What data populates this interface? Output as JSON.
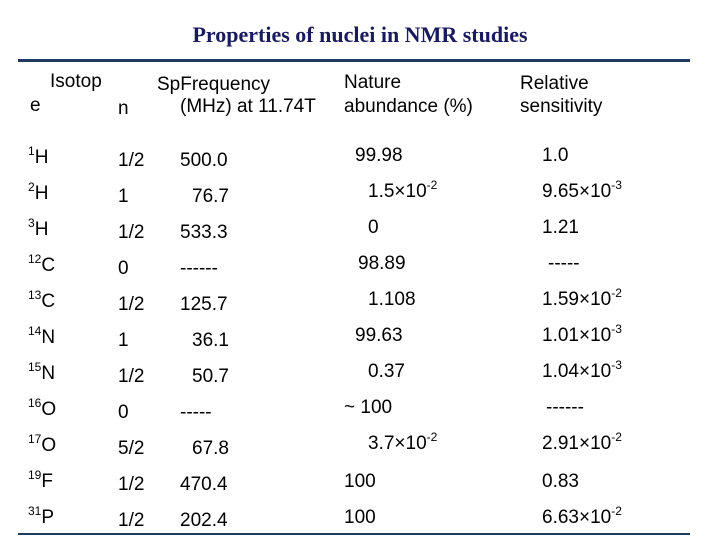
{
  "title": "Properties of nuclei in NMR studies",
  "headers": {
    "isotope_1": "Isotop",
    "isotope_2": "e",
    "spin": "n",
    "sp": "Sp",
    "freq_1": "Frequency",
    "freq_2": "(MHz) at 11.74T",
    "abund_1": "Nature",
    "abund_2": "abundance (%)",
    "sens_1": "Relative",
    "sens_2": "sensitivity"
  },
  "rows": [
    {
      "mass": "1",
      "sym": "H",
      "spin": "1/2",
      "freq": "500.0",
      "ab": "99.98",
      "ab_exp": "",
      "sens": "1.0",
      "sens_exp": ""
    },
    {
      "mass": "2",
      "sym": "H",
      "spin": "1",
      "freq": "76.7",
      "ab": "1.5×10",
      "ab_exp": "-2",
      "sens": "9.65×10",
      "sens_exp": "-3"
    },
    {
      "mass": "3",
      "sym": "H",
      "spin": "1/2",
      "freq": "533.3",
      "ab": "0",
      "ab_exp": "",
      "sens": "1.21",
      "sens_exp": ""
    },
    {
      "mass": "12",
      "sym": "C",
      "spin": "0",
      "freq": "------",
      "ab": "98.89",
      "ab_exp": "",
      "sens": "-----",
      "sens_exp": ""
    },
    {
      "mass": "13",
      "sym": "C",
      "spin": "1/2",
      "freq": "125.7",
      "ab": "1.108",
      "ab_exp": "",
      "sens": "1.59×10",
      "sens_exp": "-2"
    },
    {
      "mass": "14",
      "sym": "N",
      "spin": "1",
      "freq": "36.1",
      "ab": "99.63",
      "ab_exp": "",
      "sens": "1.01×10",
      "sens_exp": "-3"
    },
    {
      "mass": "15",
      "sym": "N",
      "spin": "1/2",
      "freq": "50.7",
      "ab": "0.37",
      "ab_exp": "",
      "sens": "1.04×10",
      "sens_exp": "-3"
    },
    {
      "mass": "16",
      "sym": "O",
      "spin": "0",
      "freq": "-----",
      "ab": "~ 100",
      "ab_exp": "",
      "sens": "------",
      "sens_exp": ""
    },
    {
      "mass": "17",
      "sym": "O",
      "spin": "5/2",
      "freq": "67.8",
      "ab": "3.7×10",
      "ab_exp": "-2",
      "sens": "2.91×10",
      "sens_exp": "-2"
    },
    {
      "mass": "19",
      "sym": "F",
      "spin": "1/2",
      "freq": "470.4",
      "ab": "100",
      "ab_exp": "",
      "sens": "0.83",
      "sens_exp": ""
    },
    {
      "mass": "31",
      "sym": "P",
      "spin": "1/2",
      "freq": "202.4",
      "ab": "100",
      "ab_exp": "",
      "sens": "6.63×10",
      "sens_exp": "-2"
    }
  ]
}
